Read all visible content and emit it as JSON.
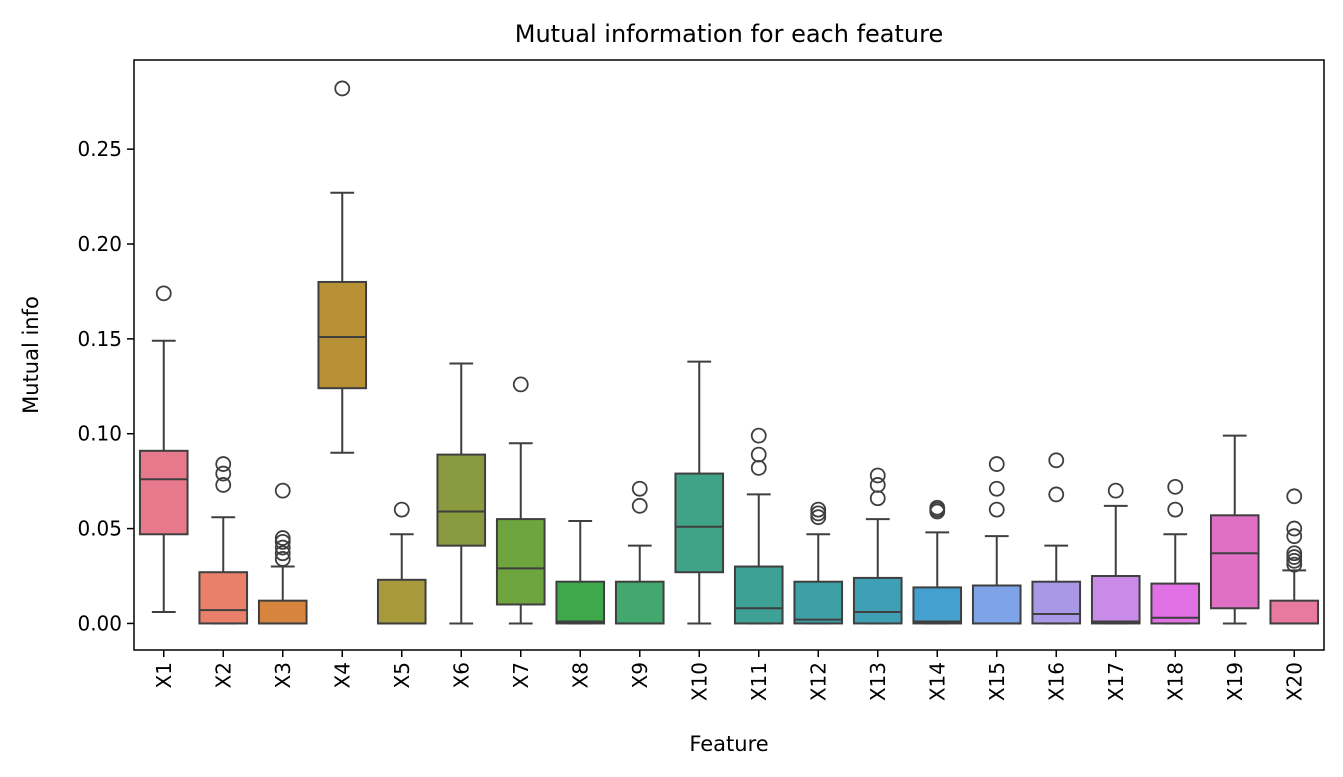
{
  "chart_data": {
    "type": "boxplot",
    "title": "Mutual information for each feature",
    "xlabel": "Feature",
    "ylabel": "Mutual info",
    "ylim": [
      -0.014,
      0.297
    ],
    "yticks": [
      0.0,
      0.05,
      0.1,
      0.15,
      0.2,
      0.25
    ],
    "ytick_labels": [
      "0.00",
      "0.05",
      "0.10",
      "0.15",
      "0.20",
      "0.25"
    ],
    "grid": false,
    "legend": "none",
    "categories": [
      "X1",
      "X2",
      "X3",
      "X4",
      "X5",
      "X6",
      "X7",
      "X8",
      "X9",
      "X10",
      "X11",
      "X12",
      "X13",
      "X14",
      "X15",
      "X16",
      "X17",
      "X18",
      "X19",
      "X20"
    ],
    "boxes": [
      {
        "q1": 0.047,
        "median": 0.076,
        "q3": 0.091,
        "whisker_low": 0.006,
        "whisker_high": 0.149,
        "outliers": [
          0.174
        ],
        "color": "#e8788c"
      },
      {
        "q1": 0.0,
        "median": 0.007,
        "q3": 0.027,
        "whisker_low": 0.0,
        "whisker_high": 0.056,
        "outliers": [
          0.073,
          0.079,
          0.084
        ],
        "color": "#e8806a"
      },
      {
        "q1": 0.0,
        "median": 0.0,
        "q3": 0.012,
        "whisker_low": 0.0,
        "whisker_high": 0.03,
        "outliers": [
          0.034,
          0.037,
          0.04,
          0.043,
          0.045,
          0.07
        ],
        "color": "#d7853e"
      },
      {
        "q1": 0.124,
        "median": 0.151,
        "q3": 0.18,
        "whisker_low": 0.09,
        "whisker_high": 0.227,
        "outliers": [
          0.282
        ],
        "color": "#b89035"
      },
      {
        "q1": 0.0,
        "median": 0.0,
        "q3": 0.023,
        "whisker_low": 0.0,
        "whisker_high": 0.047,
        "outliers": [
          0.06
        ],
        "color": "#a89a3a"
      },
      {
        "q1": 0.041,
        "median": 0.059,
        "q3": 0.089,
        "whisker_low": 0.0,
        "whisker_high": 0.137,
        "outliers": [],
        "color": "#8a9a3e"
      },
      {
        "q1": 0.01,
        "median": 0.029,
        "q3": 0.055,
        "whisker_low": 0.0,
        "whisker_high": 0.095,
        "outliers": [
          0.126
        ],
        "color": "#6fa53e"
      },
      {
        "q1": 0.0,
        "median": 0.001,
        "q3": 0.022,
        "whisker_low": 0.0,
        "whisker_high": 0.054,
        "outliers": [],
        "color": "#3fa84a"
      },
      {
        "q1": 0.0,
        "median": 0.0,
        "q3": 0.022,
        "whisker_low": 0.0,
        "whisker_high": 0.041,
        "outliers": [
          0.062,
          0.071
        ],
        "color": "#42a86e"
      },
      {
        "q1": 0.027,
        "median": 0.051,
        "q3": 0.079,
        "whisker_low": 0.0,
        "whisker_high": 0.138,
        "outliers": [],
        "color": "#40a287"
      },
      {
        "q1": 0.0,
        "median": 0.008,
        "q3": 0.03,
        "whisker_low": 0.0,
        "whisker_high": 0.068,
        "outliers": [
          0.082,
          0.089,
          0.099
        ],
        "color": "#3ea196"
      },
      {
        "q1": 0.0,
        "median": 0.002,
        "q3": 0.022,
        "whisker_low": 0.0,
        "whisker_high": 0.047,
        "outliers": [
          0.056,
          0.058,
          0.06
        ],
        "color": "#3e9fa5"
      },
      {
        "q1": 0.0,
        "median": 0.006,
        "q3": 0.024,
        "whisker_low": 0.0,
        "whisker_high": 0.055,
        "outliers": [
          0.066,
          0.073,
          0.078
        ],
        "color": "#3f9fb5"
      },
      {
        "q1": 0.0,
        "median": 0.001,
        "q3": 0.019,
        "whisker_low": 0.0,
        "whisker_high": 0.048,
        "outliers": [
          0.059,
          0.06,
          0.061
        ],
        "color": "#44a0cf"
      },
      {
        "q1": 0.0,
        "median": 0.0,
        "q3": 0.02,
        "whisker_low": 0.0,
        "whisker_high": 0.046,
        "outliers": [
          0.06,
          0.071,
          0.084
        ],
        "color": "#7fa3e8"
      },
      {
        "q1": 0.0,
        "median": 0.005,
        "q3": 0.022,
        "whisker_low": 0.0,
        "whisker_high": 0.041,
        "outliers": [
          0.068,
          0.086
        ],
        "color": "#a898e6"
      },
      {
        "q1": 0.0,
        "median": 0.001,
        "q3": 0.025,
        "whisker_low": 0.0,
        "whisker_high": 0.062,
        "outliers": [
          0.07
        ],
        "color": "#c98ae8"
      },
      {
        "q1": 0.0,
        "median": 0.003,
        "q3": 0.021,
        "whisker_low": 0.0,
        "whisker_high": 0.047,
        "outliers": [
          0.06,
          0.072
        ],
        "color": "#e070e4"
      },
      {
        "q1": 0.008,
        "median": 0.037,
        "q3": 0.057,
        "whisker_low": 0.0,
        "whisker_high": 0.099,
        "outliers": [],
        "color": "#e070c4"
      },
      {
        "q1": 0.0,
        "median": 0.0,
        "q3": 0.012,
        "whisker_low": 0.0,
        "whisker_high": 0.028,
        "outliers": [
          0.031,
          0.033,
          0.035,
          0.037,
          0.046,
          0.05,
          0.067
        ],
        "color": "#e8799f"
      }
    ]
  }
}
